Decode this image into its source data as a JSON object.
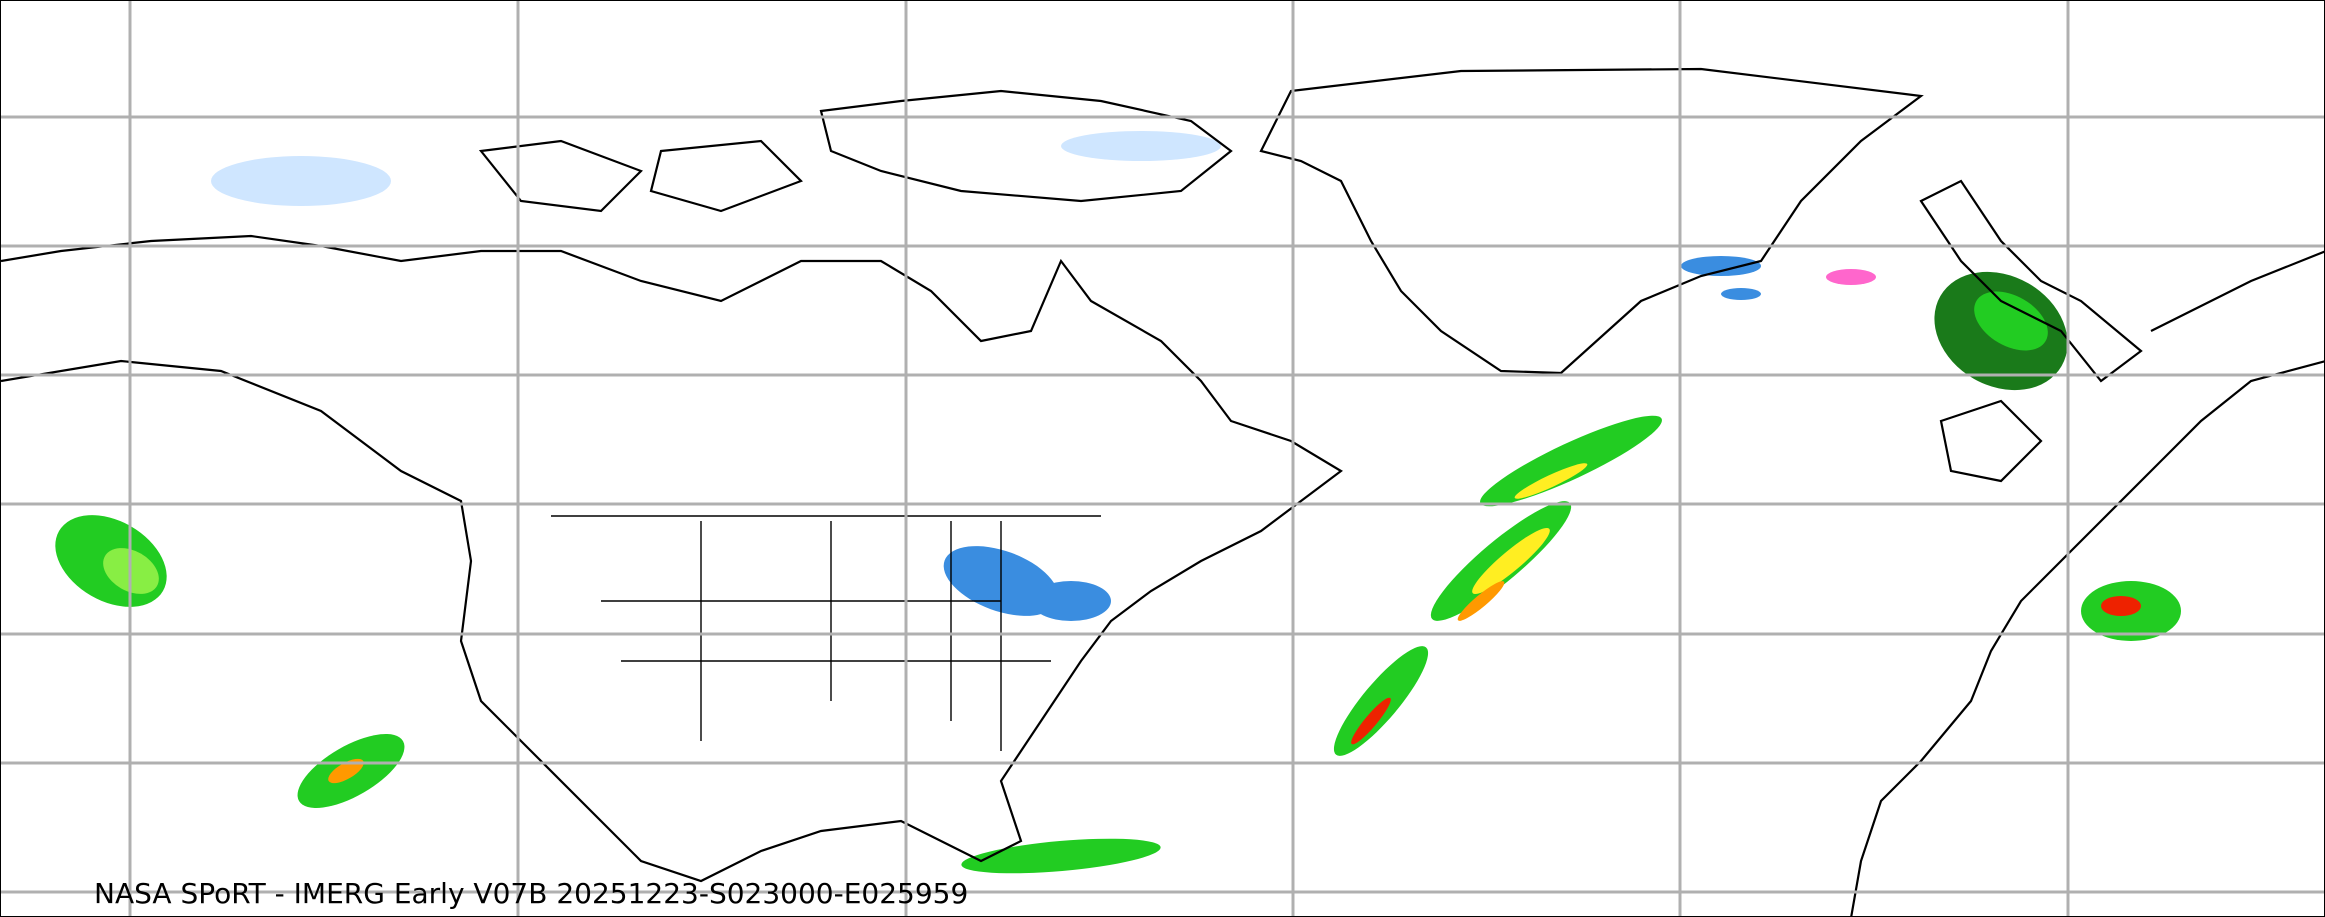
{
  "caption": "NASA SPoRT - IMERG Early V07B 20251223-S023000-E025959",
  "map": {
    "projection": "plate-carree",
    "gridlines": true,
    "colors": {
      "gridline": "#b0b0b0",
      "coastline": "#000000",
      "snow_light": "#cfe6ff",
      "snow_medium": "#3a8de0",
      "rain_dark_green": "#1a7a1a",
      "rain_green": "#22cc22",
      "rain_light_green": "#88ee44",
      "rain_yellow": "#ffee22",
      "rain_orange": "#ff9900",
      "rain_red": "#ee2200",
      "mixed_pink": "#ff66cc"
    }
  }
}
